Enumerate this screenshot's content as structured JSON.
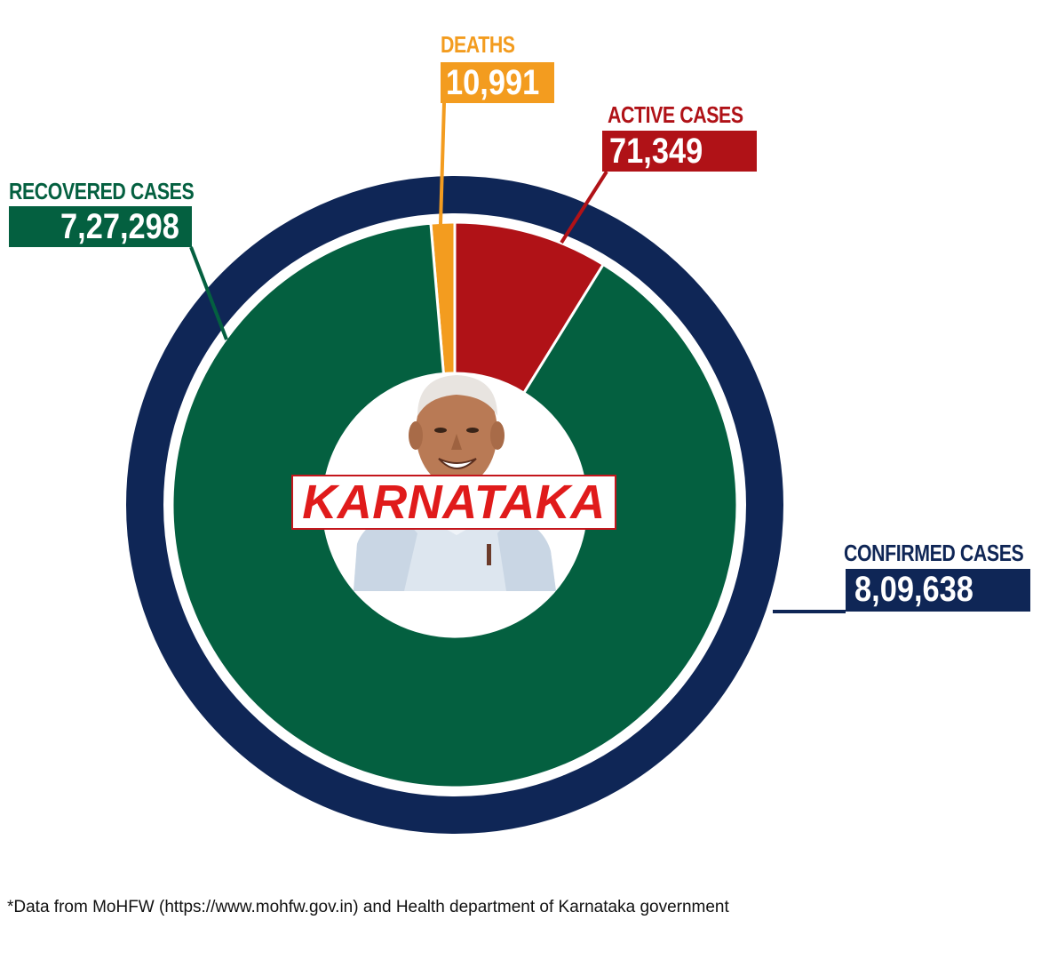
{
  "chart_data": {
    "type": "pie",
    "title": "",
    "outer_ring": {
      "name": "CONFIRMED CASES",
      "label": "8,09,638",
      "value": 809638,
      "color": "#0f2656"
    },
    "slices": [
      {
        "name": "DEATHS",
        "label": "10,991",
        "value": 10991,
        "color": "#f39c1f"
      },
      {
        "name": "ACTIVE CASES",
        "label": "71,349",
        "value": 71349,
        "color": "#b01217"
      },
      {
        "name": "RECOVERED CASES",
        "label": "7,27,298",
        "value": 727298,
        "color": "#046040"
      }
    ],
    "center_text": "KARNATAKA",
    "center_icon": "person-portrait-icon"
  },
  "footnote": "*Data from MoHFW (https://www.mohfw.gov.in) and Health department of Karnataka government"
}
